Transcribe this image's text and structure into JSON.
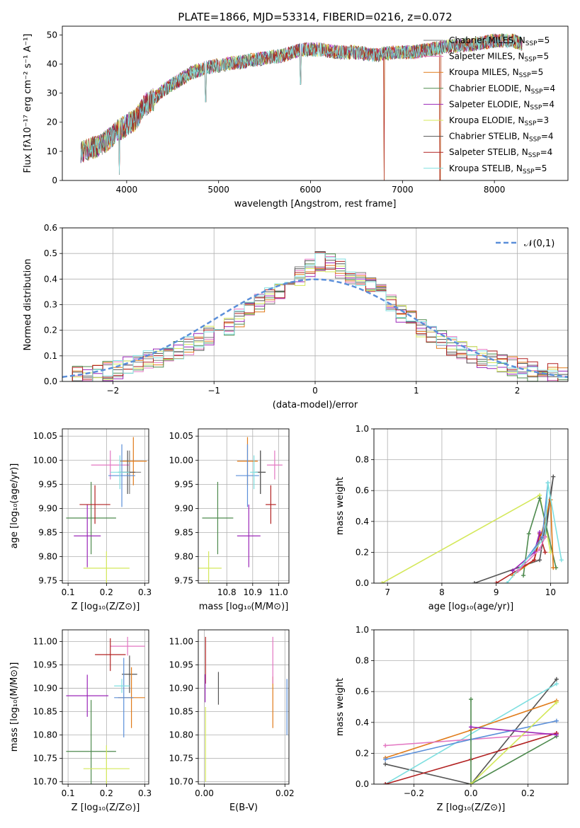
{
  "title": "PLATE=1866, MJD=53314, FIBERID=0216, z=0.072",
  "colors": {
    "chabrier_miles": "#7f7f7f",
    "salpeter_miles": "#e377c2",
    "kroupa_miles": "#e07b1a",
    "chabrier_elodie": "#4e8a4e",
    "salpeter_elodie": "#9b27b8",
    "kroupa_elodie": "#d4e85a",
    "chabrier_stelib": "#555555",
    "salpeter_stelib": "#b22222",
    "kroupa_stelib": "#7fdfe0",
    "normal": "#5b8fd9"
  },
  "chart_data": [
    {
      "type": "line",
      "panel": "spectrum",
      "xlabel": "wavelength [Angstrom, rest frame]",
      "ylabel": "Flux [fλ10⁻¹⁷ erg cm⁻² s⁻¹ A⁻¹]",
      "xlim": [
        3300,
        8800
      ],
      "ylim": [
        0,
        53
      ],
      "xticks": [
        "4000",
        "5000",
        "6000",
        "7000",
        "8000"
      ],
      "yticks": [
        "0",
        "10",
        "20",
        "30",
        "40",
        "50"
      ],
      "legend_position": "top-right",
      "continuum": {
        "x": [
          3500,
          3600,
          3700,
          3800,
          3900,
          4000,
          4100,
          4200,
          4300,
          4400,
          4500,
          4700,
          4900,
          5100,
          5300,
          5500,
          5700,
          5900,
          6100,
          6300,
          6500,
          6700,
          6900,
          7100,
          7300,
          7500,
          7800,
          8000,
          8200,
          8300
        ],
        "y": [
          10,
          11,
          12,
          14,
          17,
          19,
          21,
          26,
          28,
          31,
          33,
          37,
          39,
          40,
          41,
          42,
          43,
          45,
          45,
          44,
          44,
          43,
          44,
          44,
          45,
          46,
          47,
          48,
          48,
          47
        ]
      },
      "spikes": [
        {
          "x": 3920,
          "y": 2
        },
        {
          "x": 6800,
          "y": 0
        },
        {
          "x": 7410,
          "y": 0
        },
        {
          "x": 5890,
          "y": 33
        },
        {
          "x": 4860,
          "y": 27
        }
      ],
      "series": [
        {
          "name": "Chabrier MILES, N_SSP=5",
          "key": "chabrier_miles"
        },
        {
          "name": "Salpeter MILES, N_SSP=5",
          "key": "salpeter_miles"
        },
        {
          "name": "Kroupa MILES, N_SSP=5",
          "key": "kroupa_miles"
        },
        {
          "name": "Chabrier ELODIE, N_SSP=4",
          "key": "chabrier_elodie"
        },
        {
          "name": "Salpeter ELODIE, N_SSP=4",
          "key": "salpeter_elodie"
        },
        {
          "name": "Kroupa ELODIE, N_SSP=3",
          "key": "kroupa_elodie"
        },
        {
          "name": "Chabrier STELIB, N_SSP=4",
          "key": "chabrier_stelib"
        },
        {
          "name": "Salpeter STELIB, N_SSP=4",
          "key": "salpeter_stelib"
        },
        {
          "name": "Kroupa STELIB, N_SSP=5",
          "key": "kroupa_stelib"
        }
      ]
    },
    {
      "type": "step",
      "panel": "residuals",
      "xlabel": "(data-model)/error",
      "ylabel": "Normed distribution",
      "xlim": [
        -2.5,
        2.5
      ],
      "ylim": [
        0,
        0.6
      ],
      "xticks": [
        -2,
        -1,
        0,
        1,
        2
      ],
      "xtick_labels": [
        "−2",
        "−1",
        "0",
        "1",
        "2"
      ],
      "yticks": [
        0,
        0.1,
        0.2,
        0.3,
        0.4,
        0.5,
        0.6
      ],
      "ytick_labels": [
        "0.0",
        "0.1",
        "0.2",
        "0.3",
        "0.4",
        "0.5",
        "0.6"
      ],
      "grid": true,
      "legend": "𝒩(0,1)",
      "legend_position": "top-right",
      "bin_width": 0.1,
      "bin_start": -2.5,
      "base_histogram": [
        0.02,
        0.02,
        0.03,
        0.03,
        0.04,
        0.05,
        0.06,
        0.07,
        0.08,
        0.09,
        0.1,
        0.12,
        0.14,
        0.16,
        0.18,
        0.2,
        0.22,
        0.25,
        0.28,
        0.31,
        0.33,
        0.36,
        0.38,
        0.41,
        0.45,
        0.47,
        0.46,
        0.44,
        0.42,
        0.4,
        0.37,
        0.34,
        0.3,
        0.27,
        0.24,
        0.21,
        0.18,
        0.16,
        0.14,
        0.12,
        0.1,
        0.09,
        0.08,
        0.07,
        0.06,
        0.05,
        0.04,
        0.03,
        0.03,
        0.02
      ]
    },
    {
      "type": "scatter",
      "panel": "age_vs_Z",
      "xlabel": "Z [log₁₀(Z/Z⊙)]",
      "ylabel": "age  [log₁₀(age/yr)]",
      "xlim": [
        0.085,
        0.31
      ],
      "ylim": [
        9.745,
        10.065
      ],
      "xticks": [
        0.1,
        0.2,
        0.3
      ],
      "xtick_labels": [
        "0.1",
        "0.2",
        "0.3"
      ],
      "yticks": [
        9.75,
        9.8,
        9.85,
        9.9,
        9.95,
        10.0,
        10.05
      ],
      "ytick_labels": [
        "9.75",
        "9.80",
        "9.85",
        "9.90",
        "9.95",
        "10.00",
        "10.05"
      ],
      "grid": true,
      "points": [
        {
          "key": "chabrier_miles",
          "x": 0.26,
          "y": 9.975,
          "xe": 0.03,
          "ye": 0.045
        },
        {
          "key": "salpeter_miles",
          "x": 0.21,
          "y": 9.99,
          "xe": 0.05,
          "ye": 0.03
        },
        {
          "key": "kroupa_miles",
          "x": 0.27,
          "y": 9.998,
          "xe": 0.035,
          "ye": 0.05
        },
        {
          "key": "chabrier_elodie",
          "x": 0.16,
          "y": 9.88,
          "xe": 0.065,
          "ye": 0.075
        },
        {
          "key": "salpeter_elodie",
          "x": 0.15,
          "y": 9.843,
          "xe": 0.035,
          "ye": 0.065
        },
        {
          "key": "kroupa_elodie",
          "x": 0.2,
          "y": 9.776,
          "xe": 0.06,
          "ye": 0.035
        },
        {
          "key": "chabrier_stelib",
          "x": 0.255,
          "y": 9.975,
          "xe": 0.02,
          "ye": 0.045
        },
        {
          "key": "salpeter_stelib",
          "x": 0.17,
          "y": 9.908,
          "xe": 0.04,
          "ye": 0.04
        },
        {
          "key": "normal",
          "x": 0.24,
          "y": 9.968,
          "xe": 0.035,
          "ye": 0.065
        },
        {
          "key": "kroupa_stelib",
          "x": 0.235,
          "y": 9.975,
          "xe": 0.025,
          "ye": 0.035
        }
      ]
    },
    {
      "type": "scatter",
      "panel": "age_vs_mass",
      "xlabel": "mass [log₁₀(M/M⊙)]",
      "xlim": [
        10.69,
        11.04
      ],
      "ylim": [
        9.745,
        10.065
      ],
      "xticks": [
        10.8,
        10.9,
        11.0
      ],
      "xtick_labels": [
        "10.8",
        "10.9",
        "11.0"
      ],
      "yticks": [
        9.75,
        9.8,
        9.85,
        9.9,
        9.95,
        10.0,
        10.05
      ],
      "ytick_labels": [
        "9.75",
        "9.80",
        "9.85",
        "9.90",
        "9.95",
        "10.00",
        "10.05"
      ],
      "grid": true,
      "points": [
        {
          "key": "chabrier_miles",
          "x": 10.93,
          "y": 9.975,
          "xe": 0.02,
          "ye": 0.045
        },
        {
          "key": "salpeter_miles",
          "x": 10.985,
          "y": 9.99,
          "xe": 0.03,
          "ye": 0.03
        },
        {
          "key": "kroupa_miles",
          "x": 10.88,
          "y": 9.998,
          "xe": 0.04,
          "ye": 0.05
        },
        {
          "key": "chabrier_elodie",
          "x": 10.765,
          "y": 9.88,
          "xe": 0.06,
          "ye": 0.075
        },
        {
          "key": "salpeter_elodie",
          "x": 10.885,
          "y": 9.843,
          "xe": 0.045,
          "ye": 0.065
        },
        {
          "key": "kroupa_elodie",
          "x": 10.73,
          "y": 9.776,
          "xe": 0.05,
          "ye": 0.035
        },
        {
          "key": "chabrier_stelib",
          "x": 10.93,
          "y": 9.975,
          "xe": 0.02,
          "ye": 0.045
        },
        {
          "key": "salpeter_stelib",
          "x": 10.97,
          "y": 9.908,
          "xe": 0.02,
          "ye": 0.04
        },
        {
          "key": "normal",
          "x": 10.88,
          "y": 9.968,
          "xe": 0.045,
          "ye": 0.065
        },
        {
          "key": "kroupa_stelib",
          "x": 10.905,
          "y": 9.975,
          "xe": 0.015,
          "ye": 0.035
        }
      ]
    },
    {
      "type": "line",
      "panel": "weight_vs_age",
      "xlabel": "age  [log₁₀(age/yr)]",
      "ylabel": "mass weight",
      "xlim": [
        6.75,
        10.32
      ],
      "ylim": [
        0,
        1
      ],
      "xticks": [
        7,
        8,
        9,
        10
      ],
      "xtick_labels": [
        "7",
        "8",
        "9",
        "10"
      ],
      "yticks": [
        0,
        0.2,
        0.4,
        0.6,
        0.8,
        1.0
      ],
      "ytick_labels": [
        "0.0",
        "0.2",
        "0.4",
        "0.6",
        "0.8",
        "1.0"
      ],
      "grid": true,
      "series": [
        {
          "key": "kroupa_elodie",
          "x": [
            6.9,
            9.8,
            10.0
          ],
          "y": [
            0.0,
            0.57,
            0.2
          ]
        },
        {
          "key": "chabrier_stelib",
          "x": [
            8.6,
            9.8,
            10.05,
            9.9
          ],
          "y": [
            0.0,
            0.15,
            0.69,
            0.3
          ]
        },
        {
          "key": "chabrier_elodie",
          "x": [
            9.5,
            9.6,
            9.8,
            10.1
          ],
          "y": [
            0.05,
            0.32,
            0.55,
            0.1
          ]
        },
        {
          "key": "kroupa_miles",
          "x": [
            9.3,
            9.7,
            10.0,
            10.05
          ],
          "y": [
            0.05,
            0.15,
            0.54,
            0.1
          ]
        },
        {
          "key": "salpeter_stelib",
          "x": [
            9.0,
            9.7,
            9.8,
            9.9
          ],
          "y": [
            0.0,
            0.15,
            0.32,
            0.2
          ]
        },
        {
          "key": "salpeter_elodie",
          "x": [
            9.3,
            9.7,
            9.8
          ],
          "y": [
            0.08,
            0.2,
            0.33
          ]
        },
        {
          "key": "normal",
          "x": [
            9.4,
            9.85,
            9.95
          ],
          "y": [
            0.08,
            0.3,
            0.65
          ]
        },
        {
          "key": "kroupa_stelib",
          "x": [
            9.2,
            9.9,
            9.95,
            10.2
          ],
          "y": [
            0.0,
            0.3,
            0.65,
            0.15
          ]
        },
        {
          "key": "salpeter_miles",
          "x": [
            9.4,
            9.8,
            9.9
          ],
          "y": [
            0.08,
            0.22,
            0.3
          ]
        }
      ]
    },
    {
      "type": "scatter",
      "panel": "mass_vs_Z",
      "xlabel": "Z [log₁₀(Z/Z⊙)]",
      "ylabel": "mass [log₁₀(M/M⊙)]",
      "xlim": [
        0.085,
        0.31
      ],
      "ylim": [
        10.695,
        11.025
      ],
      "xticks": [
        0.1,
        0.2,
        0.3
      ],
      "xtick_labels": [
        "0.1",
        "0.2",
        "0.3"
      ],
      "yticks": [
        10.7,
        10.75,
        10.8,
        10.85,
        10.9,
        10.95,
        11.0
      ],
      "ytick_labels": [
        "10.70",
        "10.75",
        "10.80",
        "10.85",
        "10.90",
        "10.95",
        "11.00"
      ],
      "grid": true,
      "points": [
        {
          "key": "chabrier_stelib",
          "x": 0.26,
          "y": 10.93,
          "xe": 0.02,
          "ye": 0.04
        },
        {
          "key": "salpeter_miles",
          "x": 0.255,
          "y": 10.99,
          "xe": 0.045,
          "ye": 0.02
        },
        {
          "key": "kroupa_miles",
          "x": 0.265,
          "y": 10.88,
          "xe": 0.035,
          "ye": 0.065
        },
        {
          "key": "chabrier_elodie",
          "x": 0.16,
          "y": 10.765,
          "xe": 0.065,
          "ye": 0.11
        },
        {
          "key": "salpeter_elodie",
          "x": 0.15,
          "y": 10.884,
          "xe": 0.055,
          "ye": 0.045
        },
        {
          "key": "kroupa_elodie",
          "x": 0.2,
          "y": 10.728,
          "xe": 0.06,
          "ye": 0.05
        },
        {
          "key": "salpeter_stelib",
          "x": 0.21,
          "y": 10.972,
          "xe": 0.04,
          "ye": 0.035
        },
        {
          "key": "normal",
          "x": 0.245,
          "y": 10.88,
          "xe": 0.025,
          "ye": 0.085
        },
        {
          "key": "kroupa_stelib",
          "x": 0.24,
          "y": 10.905,
          "xe": 0.02,
          "ye": 0.015
        }
      ]
    },
    {
      "type": "errorbar",
      "panel": "mass_vs_ebv",
      "xlabel": "E(B-V)",
      "xlim": [
        -0.0015,
        0.021
      ],
      "ylim": [
        10.695,
        11.025
      ],
      "xticks": [
        0.0,
        0.02
      ],
      "xtick_labels": [
        "0.00",
        "0.02"
      ],
      "yticks": [
        10.7,
        10.75,
        10.8,
        10.85,
        10.9,
        10.95,
        11.0
      ],
      "ytick_labels": [
        "10.70",
        "10.75",
        "10.80",
        "10.85",
        "10.90",
        "10.95",
        "11.00"
      ],
      "grid": true,
      "points": [
        {
          "key": "salpeter_stelib",
          "x": 0.0003,
          "y": 10.96,
          "ye": 0.05
        },
        {
          "key": "salpeter_elodie",
          "x": 0.0002,
          "y": 10.9,
          "ye": 0.03
        },
        {
          "key": "kroupa_elodie",
          "x": 0.0003,
          "y": 10.78,
          "ye": 0.08
        },
        {
          "key": "chabrier_stelib",
          "x": 0.0035,
          "y": 10.9,
          "ye": 0.035
        },
        {
          "key": "kroupa_miles",
          "x": 0.017,
          "y": 10.87,
          "ye": 0.055
        },
        {
          "key": "salpeter_miles",
          "x": 0.017,
          "y": 10.96,
          "ye": 0.05
        },
        {
          "key": "normal",
          "x": 0.0205,
          "y": 10.86,
          "ye": 0.06
        }
      ]
    },
    {
      "type": "line",
      "panel": "weight_vs_Z",
      "xlabel": "Z [log₁₀(Z/Z⊙)]",
      "ylabel": "mass weight",
      "xlim": [
        -0.34,
        0.34
      ],
      "ylim": [
        0,
        1
      ],
      "xticks": [
        -0.2,
        0.0,
        0.2
      ],
      "xtick_labels": [
        "−0.2",
        "0.0",
        "0.2"
      ],
      "yticks": [
        0,
        0.2,
        0.4,
        0.6,
        0.8,
        1.0
      ],
      "ytick_labels": [
        "0.0",
        "0.2",
        "0.4",
        "0.6",
        "0.8",
        "1.0"
      ],
      "grid": true,
      "series": [
        {
          "key": "chabrier_stelib",
          "x": [
            -0.3,
            0.0,
            0.3
          ],
          "y": [
            0.13,
            0.0,
            0.68
          ]
        },
        {
          "key": "kroupa_stelib",
          "x": [
            -0.3,
            0.3
          ],
          "y": [
            0.0,
            0.65
          ]
        },
        {
          "key": "kroupa_miles",
          "x": [
            -0.3,
            0.0,
            0.3
          ],
          "y": [
            0.17,
            0.35,
            0.54
          ]
        },
        {
          "key": "salpeter_miles",
          "x": [
            -0.3,
            0.3
          ],
          "y": [
            0.25,
            0.33
          ]
        },
        {
          "key": "normal",
          "x": [
            -0.3,
            0.0,
            0.3
          ],
          "y": [
            0.16,
            0.29,
            0.41
          ]
        },
        {
          "key": "salpeter_stelib",
          "x": [
            -0.3,
            0.0,
            0.3
          ],
          "y": [
            0.0,
            0.16,
            0.33
          ]
        },
        {
          "key": "chabrier_elodie",
          "x": [
            0.0,
            0.0,
            0.3
          ],
          "y": [
            0.55,
            0.0,
            0.31
          ]
        },
        {
          "key": "kroupa_elodie",
          "x": [
            0.0,
            0.3
          ],
          "y": [
            0.0,
            0.53
          ]
        },
        {
          "key": "salpeter_elodie",
          "x": [
            0.0,
            0.3
          ],
          "y": [
            0.37,
            0.32
          ]
        }
      ]
    }
  ]
}
